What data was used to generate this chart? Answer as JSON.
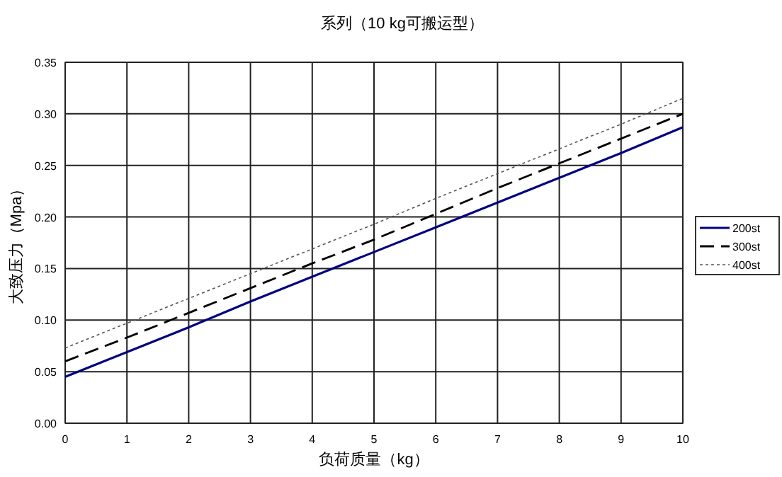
{
  "chart_data": {
    "type": "line",
    "title": "系列（10 kg可搬运型）",
    "xlabel": "负荷质量（kg）",
    "ylabel": "大致压力（Mpa）",
    "x": [
      0,
      1,
      2,
      3,
      4,
      5,
      6,
      7,
      8,
      9,
      10
    ],
    "xlim": [
      0,
      10
    ],
    "xticks": [
      0,
      1,
      2,
      3,
      4,
      5,
      6,
      7,
      8,
      9,
      10
    ],
    "ylim": [
      0,
      0.35
    ],
    "yticks": [
      {
        "value": 0,
        "label": "0.00"
      },
      {
        "value": 0.05,
        "label": "0.05"
      },
      {
        "value": 0.1,
        "label": "0.10"
      },
      {
        "value": 0.15,
        "label": "0.15"
      },
      {
        "value": 0.2,
        "label": "0.20"
      },
      {
        "value": 0.25,
        "label": "0.25"
      },
      {
        "value": 0.3,
        "label": "0.30"
      },
      {
        "value": 0.35,
        "label": "0.35"
      }
    ],
    "grid": true,
    "legend": "right",
    "marker": "none",
    "series": [
      {
        "name": "200st",
        "color": "#000080",
        "line_style": "solid",
        "values": [
          0.045,
          0.069,
          0.093,
          0.118,
          0.142,
          0.166,
          0.19,
          0.214,
          0.238,
          0.262,
          0.287
        ]
      },
      {
        "name": "300st",
        "color": "#000000",
        "line_style": "dashed",
        "values": [
          0.06,
          0.083,
          0.107,
          0.131,
          0.155,
          0.178,
          0.203,
          0.228,
          0.252,
          0.276,
          0.3
        ]
      },
      {
        "name": "400st",
        "color": "#555555",
        "line_style": "dotted",
        "values": [
          0.073,
          0.097,
          0.121,
          0.145,
          0.169,
          0.193,
          0.218,
          0.242,
          0.266,
          0.29,
          0.315
        ]
      }
    ]
  }
}
